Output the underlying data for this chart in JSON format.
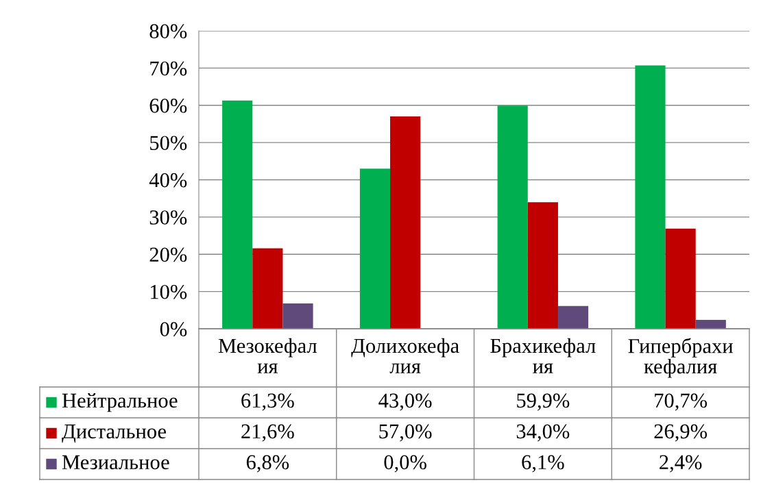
{
  "chart_data": {
    "type": "bar",
    "categories": [
      "Мезокефал\nия",
      "Долихокефа\nлия",
      "Брахикефал\nия",
      "Гипербрахи\nкефалия"
    ],
    "series": [
      {
        "name": "Нейтральное",
        "color": "#00b050",
        "values": [
          61.3,
          43.0,
          59.9,
          70.7
        ],
        "value_labels": [
          "61,3%",
          "43,0%",
          "59,9%",
          "70,7%"
        ]
      },
      {
        "name": "Дистальное",
        "color": "#c00000",
        "values": [
          21.6,
          57.0,
          34.0,
          26.9
        ],
        "value_labels": [
          "21,6%",
          "57,0%",
          "34,0%",
          "26,9%"
        ]
      },
      {
        "name": "Мезиальное",
        "color": "#604a7b",
        "values": [
          6.8,
          0.0,
          6.1,
          2.4
        ],
        "value_labels": [
          "6,8%",
          "0,0%",
          "6,1%",
          "2,4%"
        ]
      }
    ],
    "ylim": [
      0,
      80
    ],
    "yticks": [
      {
        "value": 0,
        "label": "0%"
      },
      {
        "value": 10,
        "label": "10%"
      },
      {
        "value": 20,
        "label": "20%"
      },
      {
        "value": 30,
        "label": "30%"
      },
      {
        "value": 40,
        "label": "40%"
      },
      {
        "value": 50,
        "label": "50%"
      },
      {
        "value": 60,
        "label": "60%"
      },
      {
        "value": 70,
        "label": "70%"
      },
      {
        "value": 80,
        "label": "80%"
      }
    ],
    "grid": "y",
    "legend": "bottom"
  }
}
